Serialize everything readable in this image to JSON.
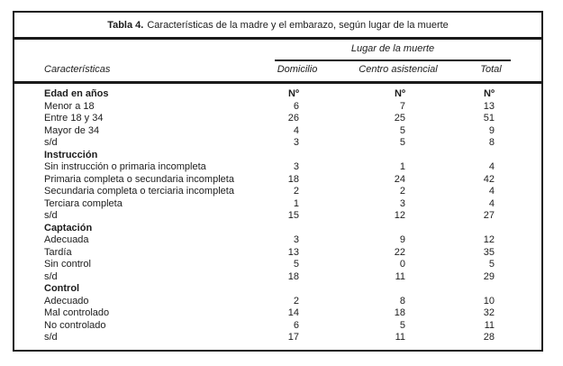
{
  "title": {
    "prefix": "Tabla 4.",
    "text": "Características de la madre y el embarazo, según lugar de la muerte"
  },
  "header": {
    "characteristics_label": "Características",
    "group_label": "Lugar de la muerte",
    "columns": [
      "Domicilio",
      "Centro asistencial",
      "Total"
    ]
  },
  "chart_data": {
    "type": "table",
    "title": "Tabla 4. Características de la madre y el embarazo, según lugar de la muerte",
    "columns": [
      "Características",
      "Domicilio",
      "Centro asistencial",
      "Total"
    ],
    "rows": [
      {
        "label": "Edad en años",
        "bold": true,
        "d": "Nº",
        "c": "Nº",
        "t": "Nº"
      },
      {
        "label": "Menor a 18",
        "bold": false,
        "d": "6",
        "c": "7",
        "t": "13"
      },
      {
        "label": "Entre 18 y 34",
        "bold": false,
        "d": "26",
        "c": "25",
        "t": "51"
      },
      {
        "label": "Mayor de 34",
        "bold": false,
        "d": "4",
        "c": "5",
        "t": "9"
      },
      {
        "label": "s/d",
        "bold": false,
        "d": "3",
        "c": "5",
        "t": "8"
      },
      {
        "label": "Instrucción",
        "bold": true,
        "d": "",
        "c": "",
        "t": ""
      },
      {
        "label": "Sin instrucción o primaria incompleta",
        "bold": false,
        "d": "3",
        "c": "1",
        "t": "4"
      },
      {
        "label": "Primaria completa o secundaria incompleta",
        "bold": false,
        "d": "18",
        "c": "24",
        "t": "42"
      },
      {
        "label": "Secundaria completa o terciaria incompleta",
        "bold": false,
        "d": "2",
        "c": "2",
        "t": "4"
      },
      {
        "label": "Terciara completa",
        "bold": false,
        "d": "1",
        "c": "3",
        "t": "4"
      },
      {
        "label": "s/d",
        "bold": false,
        "d": "15",
        "c": "12",
        "t": "27"
      },
      {
        "label": "Captación",
        "bold": true,
        "d": "",
        "c": "",
        "t": ""
      },
      {
        "label": "Adecuada",
        "bold": false,
        "d": "3",
        "c": "9",
        "t": "12"
      },
      {
        "label": "Tardía",
        "bold": false,
        "d": "13",
        "c": "22",
        "t": "35"
      },
      {
        "label": "Sin control",
        "bold": false,
        "d": "5",
        "c": "0",
        "t": "5"
      },
      {
        "label": "s/d",
        "bold": false,
        "d": "18",
        "c": "11",
        "t": "29"
      },
      {
        "label": "Control",
        "bold": true,
        "d": "",
        "c": "",
        "t": ""
      },
      {
        "label": "Adecuado",
        "bold": false,
        "d": "2",
        "c": "8",
        "t": "10"
      },
      {
        "label": "Mal controlado",
        "bold": false,
        "d": "14",
        "c": "18",
        "t": "32"
      },
      {
        "label": "No controlado",
        "bold": false,
        "d": "6",
        "c": "5",
        "t": "11"
      },
      {
        "label": "s/d",
        "bold": false,
        "d": "17",
        "c": "11",
        "t": "28"
      }
    ]
  },
  "colors": {
    "border": "#1a1a1a",
    "text": "#1c1c1c",
    "background": "#ffffff"
  }
}
